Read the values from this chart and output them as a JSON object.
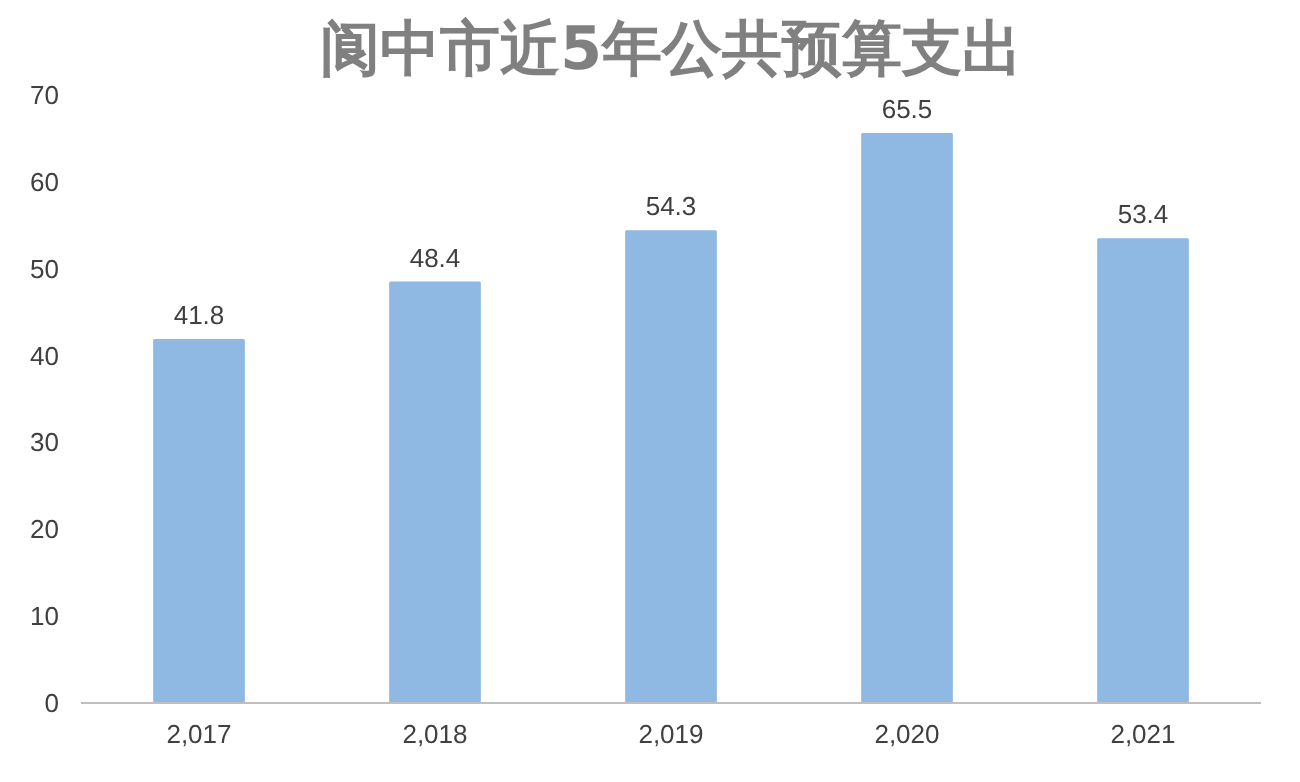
{
  "chart_data": {
    "type": "bar",
    "title": "阆中市近5年公共预算支出",
    "categories": [
      "2,017",
      "2,018",
      "2,019",
      "2,020",
      "2,021"
    ],
    "values": [
      41.8,
      48.4,
      54.3,
      65.5,
      53.4
    ],
    "color": "#8fb9e3",
    "ylim": [
      0,
      70
    ],
    "yticks": [
      0,
      10,
      20,
      30,
      40,
      50,
      60,
      70
    ],
    "grid": false,
    "data_labels": true
  }
}
